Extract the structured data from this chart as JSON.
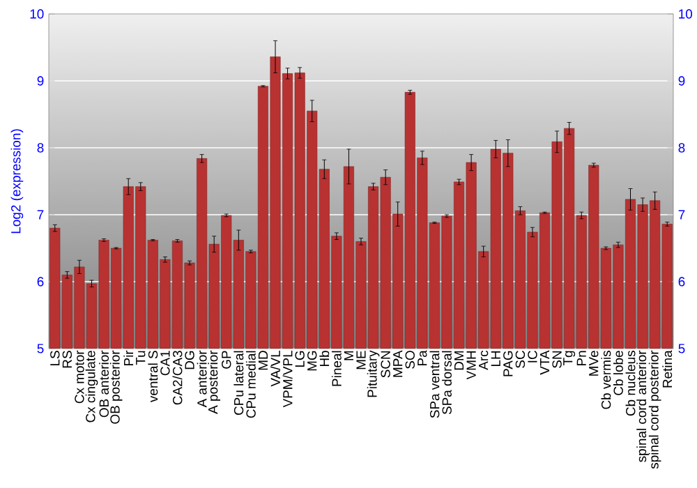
{
  "chart_data": {
    "type": "bar",
    "ylabel": "Log2 (expression)",
    "color": "#b83232",
    "categories": [
      "LS",
      "RS",
      "Cx motor",
      "Cx cingulate",
      "OB anterior",
      "OB posterior",
      "Pir",
      "Tu",
      "ventral S",
      "CA1",
      "CA2/CA3",
      "DG",
      "A anterior",
      "A posterior",
      "GP",
      "CPu lateral",
      "CPu medial",
      "MD",
      "VA/VL",
      "VPM/VPL",
      "LG",
      "MG",
      "Hb",
      "Pineal",
      "M",
      "ME",
      "Pituitary",
      "SCN",
      "MPA",
      "SO",
      "Pa",
      "SPa ventral",
      "SPa dorsal",
      "DM",
      "VMH",
      "Arc",
      "LH",
      "PAG",
      "SC",
      "IC",
      "VTA",
      "SN",
      "Tg",
      "Pn",
      "MVe",
      "Cb vermis",
      "Cb lobe",
      "Cb nucleus",
      "spinal cord anterior",
      "spinal cord posterior",
      "Retina"
    ],
    "values": [
      6.8,
      6.1,
      6.22,
      5.97,
      6.62,
      6.5,
      7.42,
      7.42,
      6.62,
      6.33,
      6.61,
      6.28,
      7.84,
      6.56,
      6.99,
      6.62,
      6.45,
      8.92,
      9.36,
      9.11,
      9.12,
      8.55,
      7.68,
      6.68,
      7.72,
      6.6,
      7.42,
      7.56,
      7.01,
      8.83,
      7.85,
      6.88,
      6.98,
      7.49,
      7.78,
      6.45,
      7.98,
      7.92,
      7.06,
      6.74,
      7.03,
      8.09,
      8.29,
      6.99,
      7.74,
      6.5,
      6.55,
      7.23,
      7.15,
      7.21,
      6.86
    ],
    "errors": [
      0.05,
      0.05,
      0.1,
      0.05,
      0.02,
      0.01,
      0.12,
      0.06,
      0.01,
      0.04,
      0.02,
      0.03,
      0.06,
      0.12,
      0.02,
      0.15,
      0.02,
      0.01,
      0.24,
      0.08,
      0.08,
      0.16,
      0.14,
      0.05,
      0.26,
      0.05,
      0.05,
      0.11,
      0.18,
      0.03,
      0.1,
      0.01,
      0.02,
      0.04,
      0.12,
      0.08,
      0.13,
      0.2,
      0.06,
      0.07,
      0.01,
      0.16,
      0.09,
      0.05,
      0.03,
      0.02,
      0.04,
      0.16,
      0.1,
      0.13,
      0.03
    ],
    "ylim": [
      5,
      10
    ],
    "yticks": [
      5,
      6,
      7,
      8,
      9,
      10
    ],
    "y2lim": [
      5,
      10
    ],
    "y2ticks": [
      5,
      6,
      7,
      8,
      9,
      10
    ],
    "grid": "y"
  }
}
